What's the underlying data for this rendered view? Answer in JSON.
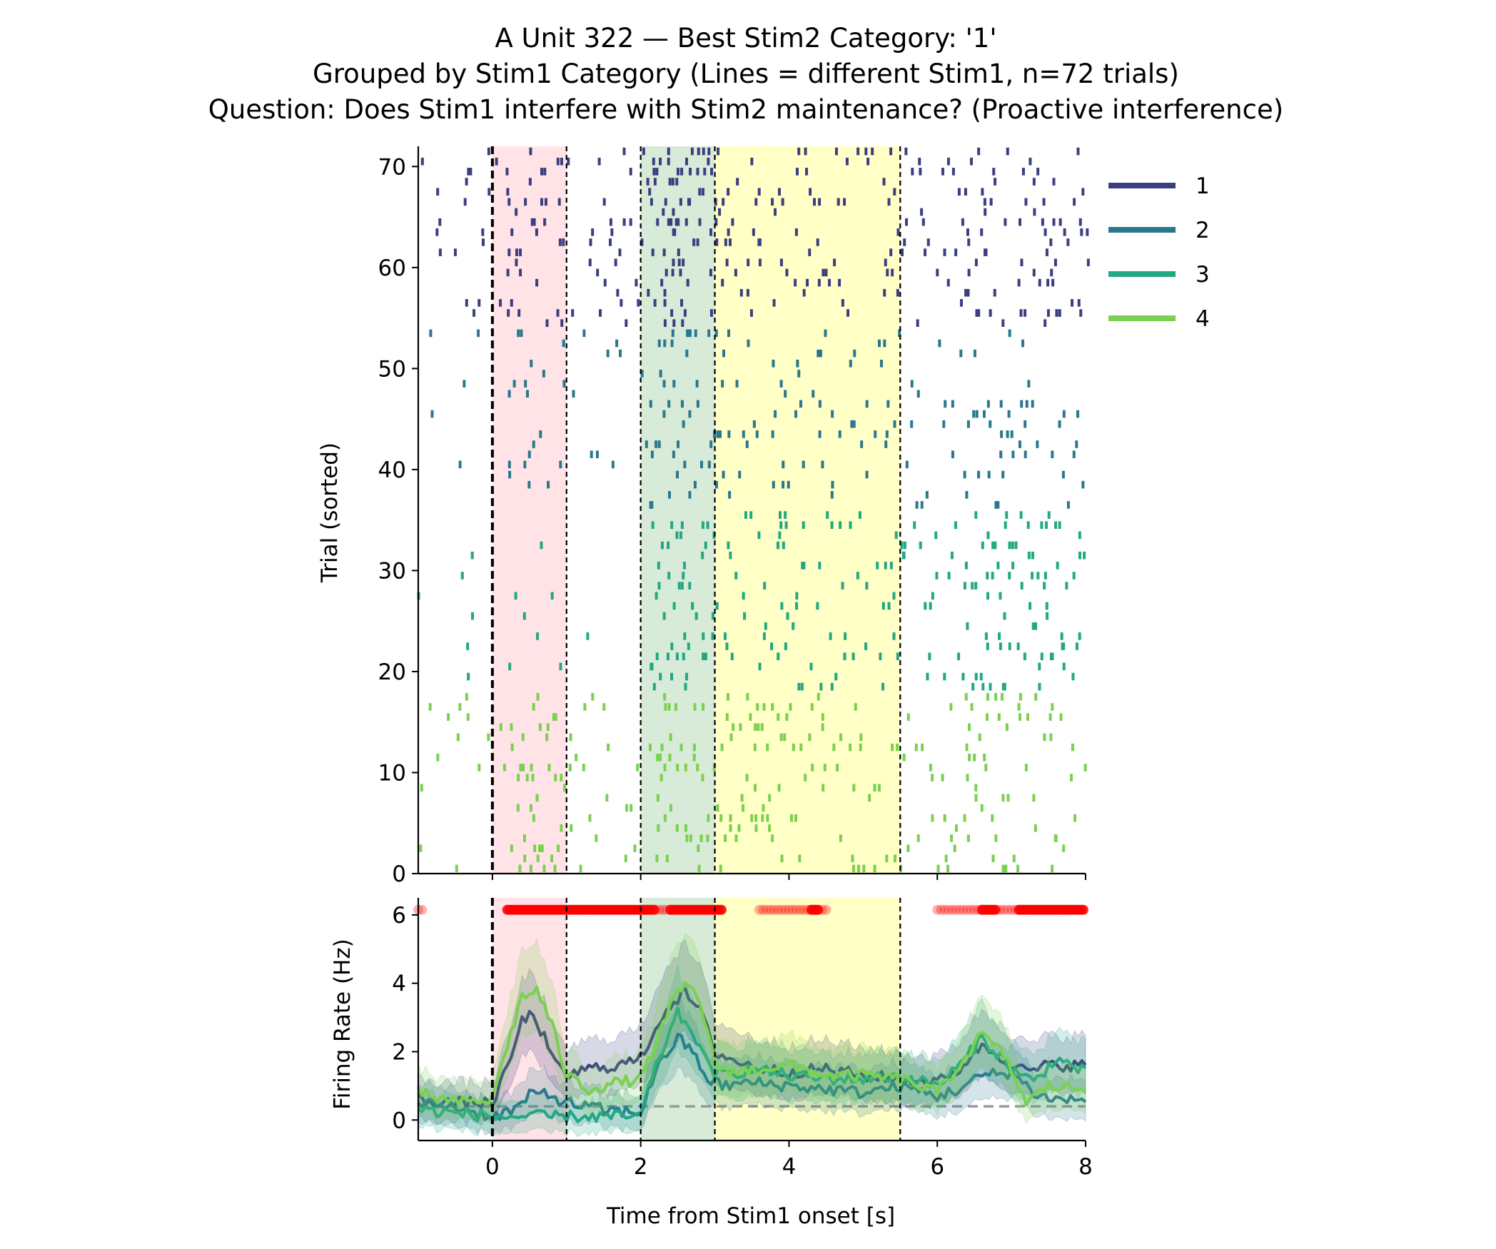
{
  "figure": {
    "title_lines": [
      "A Unit 322 — Best Stim2 Category: '1'",
      "Grouped by Stim1 Category (Lines = different Stim1, n=72 trials)",
      "Question: Does Stim1 interfere with Stim2 maintenance? (Proactive interference)"
    ]
  },
  "chart_data": [
    {
      "panel": "raster",
      "type": "scatter",
      "ylabel": "Trial (sorted)",
      "xlim": [
        -1,
        8
      ],
      "ylim": [
        0,
        72
      ],
      "yticks": [
        "0",
        "10",
        "20",
        "30",
        "40",
        "50",
        "60",
        "70"
      ],
      "epochs": [
        {
          "start": 0,
          "end": 1,
          "color": "#ffc0c8"
        },
        {
          "start": 2,
          "end": 3,
          "color": "#a9d3a9"
        },
        {
          "start": 3,
          "end": 5.5,
          "color": "#ffff80"
        }
      ],
      "event_lines": [
        0,
        1,
        2,
        3,
        5.5
      ],
      "legend": {
        "position": "upper right (outside)",
        "entries": [
          {
            "label": "1",
            "color": "#3b3f80"
          },
          {
            "label": "2",
            "color": "#2a788e"
          },
          {
            "label": "3",
            "color": "#22a884"
          },
          {
            "label": "4",
            "color": "#7ad151"
          }
        ]
      },
      "groups": [
        {
          "category": "1",
          "trials": [
            54,
            72
          ],
          "color": "#3b3f80"
        },
        {
          "category": "2",
          "trials": [
            36,
            54
          ],
          "color": "#2a788e"
        },
        {
          "category": "3",
          "trials": [
            18,
            36
          ],
          "color": "#22a884"
        },
        {
          "category": "4",
          "trials": [
            0,
            18
          ],
          "color": "#7ad151"
        }
      ]
    },
    {
      "panel": "psth",
      "type": "line",
      "xlabel": "Time from Stim1 onset [s]",
      "ylabel": "Firing Rate (Hz)",
      "xlim": [
        -1,
        8
      ],
      "ylim": [
        -0.6,
        6.5
      ],
      "xticks": [
        "0",
        "2",
        "4",
        "6",
        "8"
      ],
      "yticks": [
        "0",
        "2",
        "4",
        "6"
      ],
      "baseline": 0.4,
      "significance_y": 6.15,
      "significance_strong_ranges": [
        [
          0.2,
          2.2
        ],
        [
          2.4,
          3.1
        ],
        [
          4.3,
          4.4
        ],
        [
          6.6,
          6.8
        ],
        [
          7.1,
          8.0
        ]
      ],
      "significance_weak_ranges": [
        [
          -1.0,
          -0.9
        ],
        [
          2.2,
          2.4
        ],
        [
          3.6,
          4.5
        ],
        [
          6.0,
          6.6
        ],
        [
          6.8,
          7.1
        ]
      ],
      "series": [
        {
          "name": "1",
          "color": "#3b3f80",
          "x": [
            -1,
            -0.5,
            0,
            0.2,
            0.4,
            0.55,
            0.7,
            0.85,
            1,
            1.3,
            1.7,
            2.0,
            2.2,
            2.4,
            2.6,
            2.8,
            3.0,
            3.3,
            3.6,
            4,
            4.5,
            5,
            5.5,
            6,
            6.3,
            6.6,
            6.9,
            7.2,
            7.5,
            8
          ],
          "values": [
            0.6,
            0.5,
            0.5,
            1.5,
            2.9,
            3.1,
            2.4,
            1.6,
            1.3,
            1.5,
            1.6,
            1.8,
            2.7,
            3.4,
            3.7,
            3.2,
            2.0,
            1.7,
            1.5,
            1.4,
            1.5,
            1.3,
            1.2,
            1.1,
            1.5,
            2.2,
            1.8,
            1.4,
            1.6,
            1.6
          ]
        },
        {
          "name": "2",
          "color": "#2a788e",
          "x": [
            -1,
            -0.5,
            0,
            0.3,
            0.5,
            0.7,
            1.0,
            1.5,
            2.0,
            2.1,
            2.3,
            2.5,
            2.7,
            2.9,
            3.1,
            3.5,
            4,
            4.5,
            5,
            5.5,
            6,
            6.3,
            6.6,
            7,
            7.3,
            7.6,
            8
          ],
          "values": [
            0.5,
            0.4,
            0.1,
            0.3,
            0.7,
            0.8,
            0.5,
            0.3,
            0.2,
            0.9,
            1.8,
            2.4,
            2.0,
            1.2,
            1.0,
            1.1,
            1.0,
            0.9,
            0.8,
            1.0,
            0.7,
            0.9,
            1.3,
            1.4,
            0.8,
            0.6,
            0.6
          ]
        },
        {
          "name": "3",
          "color": "#22a884",
          "x": [
            -1,
            -0.5,
            0,
            0.5,
            1.0,
            1.5,
            2.0,
            2.1,
            2.3,
            2.5,
            2.7,
            2.9,
            3.1,
            3.5,
            4,
            4.5,
            5,
            5.5,
            6,
            6.3,
            6.6,
            7,
            7.3,
            7.6,
            8
          ],
          "values": [
            0.3,
            0.2,
            0.1,
            0.1,
            0.1,
            0.1,
            0.1,
            0.9,
            2.1,
            3.1,
            2.6,
            1.6,
            1.3,
            1.5,
            1.3,
            1.2,
            1.2,
            1.3,
            1.0,
            1.6,
            2.4,
            1.5,
            1.1,
            1.8,
            1.4
          ]
        },
        {
          "name": "4",
          "color": "#7ad151",
          "x": [
            -1,
            -0.5,
            0,
            0.2,
            0.4,
            0.6,
            0.8,
            1.0,
            1.3,
            1.7,
            2.0,
            2.2,
            2.4,
            2.6,
            2.8,
            3.0,
            3.3,
            3.6,
            4,
            4.5,
            5,
            5.5,
            6,
            6.3,
            6.6,
            6.9,
            7.2,
            7.5,
            8
          ],
          "values": [
            0.8,
            0.5,
            0.6,
            2.2,
            3.6,
            3.8,
            2.8,
            1.3,
            0.9,
            1.1,
            1.2,
            2.2,
            3.3,
            4.0,
            3.5,
            1.6,
            1.4,
            1.5,
            1.6,
            1.3,
            1.3,
            1.2,
            0.8,
            1.6,
            2.5,
            1.9,
            0.5,
            1.0,
            0.9
          ]
        }
      ]
    }
  ]
}
